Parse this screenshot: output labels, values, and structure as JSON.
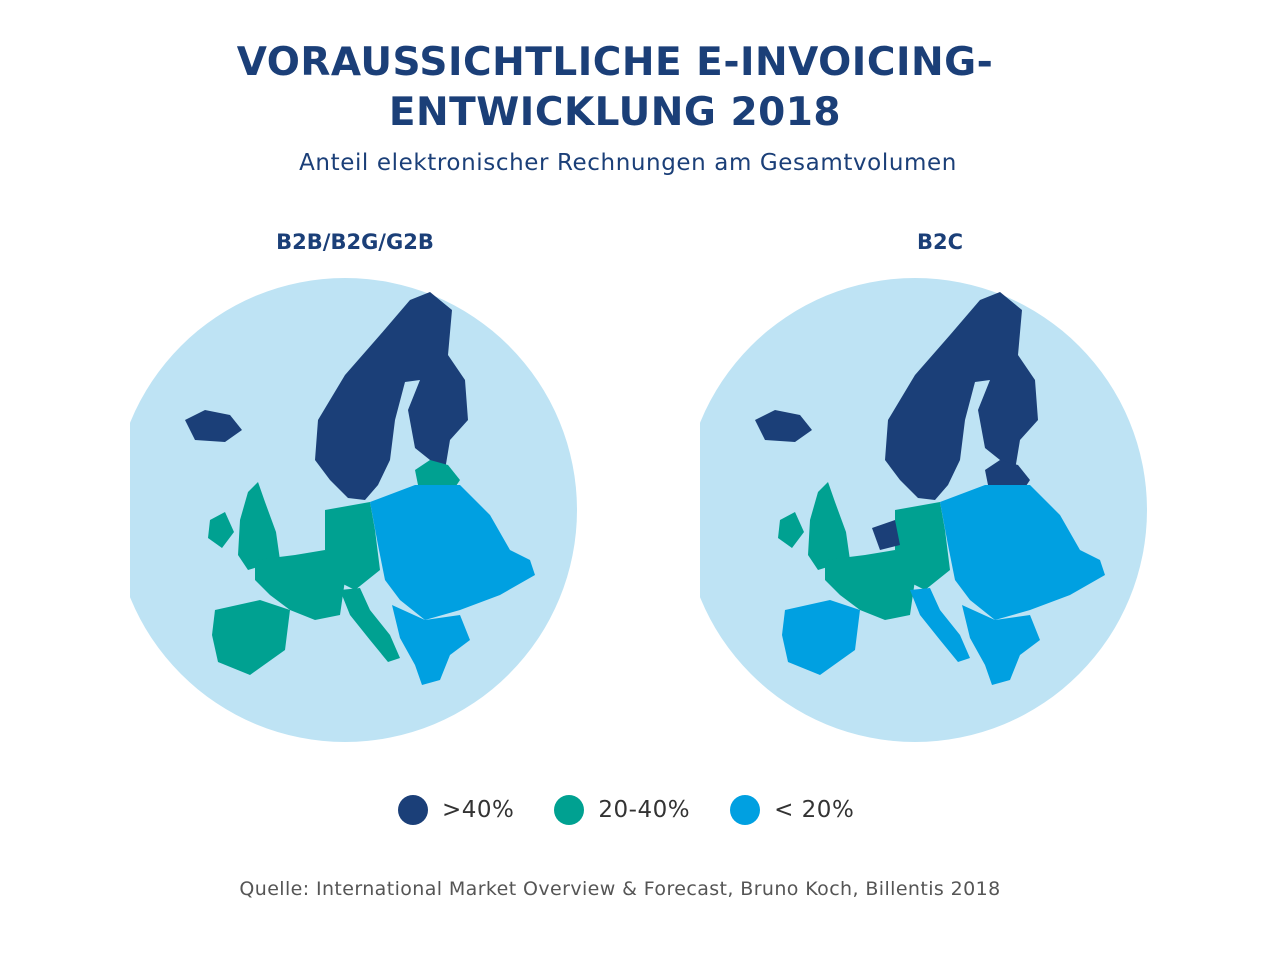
{
  "title": {
    "line1": "VORAUSSICHTLICHE E-INVOICING-",
    "line2": "ENTWICKLUNG 2018"
  },
  "subtitle": "Anteil elektronischer Rechnungen am Gesamtvolumen",
  "maps": [
    {
      "label": "B2B/B2G/G2B",
      "regions": {
        "nordic": ">40%",
        "british_isles": "20-40%",
        "iberia": "20-40%",
        "france": "20-40%",
        "central": "20-40%",
        "italy": "20-40%",
        "baltics": "20-40%",
        "east": "< 20%",
        "balkans": "< 20%"
      }
    },
    {
      "label": "B2C",
      "regions": {
        "nordic": ">40%",
        "british_isles": "20-40%",
        "iberia": "< 20%",
        "france": "20-40%",
        "central": "20-40%",
        "benelux": ">40%",
        "italy": "< 20%",
        "baltics": ">40%",
        "east": "< 20%",
        "balkans": "< 20%"
      }
    }
  ],
  "legend": [
    {
      "label": ">40%",
      "color": "#1b3f78"
    },
    {
      "label": "20-40%",
      "color": "#00a191"
    },
    {
      "label": "< 20%",
      "color": "#00a0e1"
    }
  ],
  "colors": {
    "sea": "#bee3f4",
    "background": "#ffffff",
    "text": "#1b3f78"
  },
  "source": "Quelle: International Market Overview & Forecast, Bruno Koch, Billentis 2018"
}
